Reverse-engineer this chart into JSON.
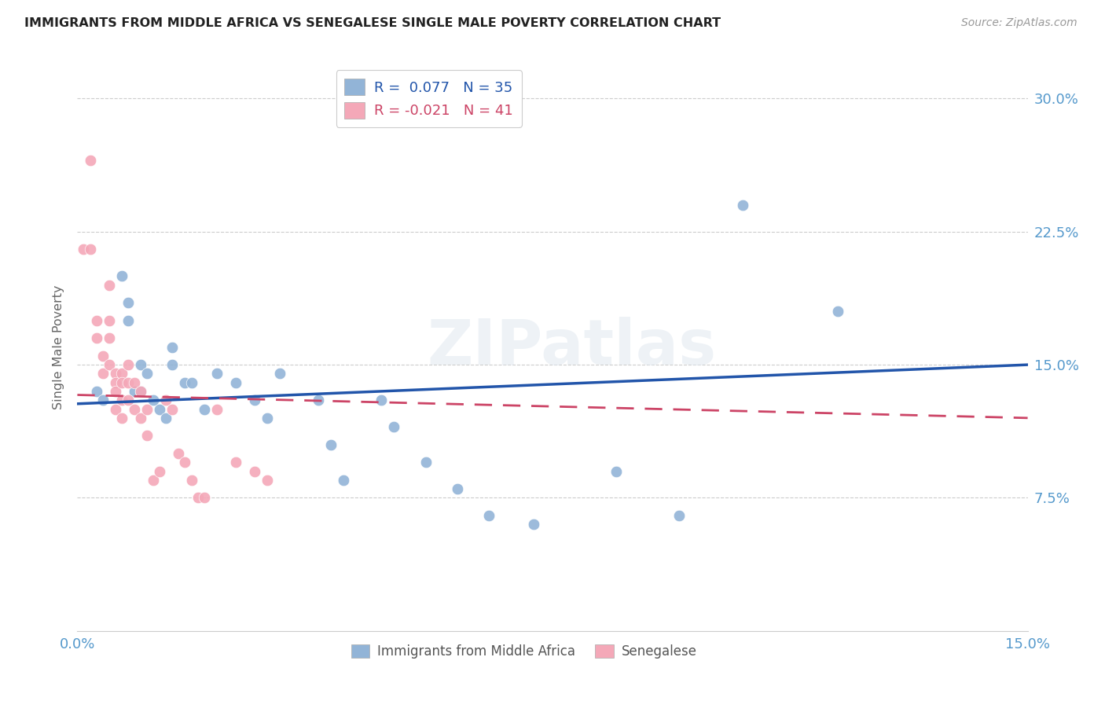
{
  "title": "IMMIGRANTS FROM MIDDLE AFRICA VS SENEGALESE SINGLE MALE POVERTY CORRELATION CHART",
  "source": "Source: ZipAtlas.com",
  "ylabel": "Single Male Poverty",
  "y_tick_labels": [
    "7.5%",
    "15.0%",
    "22.5%",
    "30.0%"
  ],
  "y_tick_values": [
    0.075,
    0.15,
    0.225,
    0.3
  ],
  "x_min": 0.0,
  "x_max": 0.15,
  "y_min": 0.0,
  "y_max": 0.32,
  "legend_r1": "R =  0.077   N = 35",
  "legend_r2": "R = -0.021   N = 41",
  "blue_color": "#92B4D7",
  "pink_color": "#F4A8B8",
  "line_blue_color": "#2255AA",
  "line_pink_color": "#CC4466",
  "axis_label_color": "#5599CC",
  "watermark": "ZIPatlas",
  "blue_points_x": [
    0.003,
    0.004,
    0.007,
    0.008,
    0.008,
    0.009,
    0.01,
    0.01,
    0.011,
    0.012,
    0.013,
    0.014,
    0.015,
    0.015,
    0.017,
    0.018,
    0.02,
    0.022,
    0.025,
    0.028,
    0.03,
    0.032,
    0.038,
    0.04,
    0.042,
    0.048,
    0.05,
    0.055,
    0.06,
    0.065,
    0.072,
    0.085,
    0.095,
    0.105,
    0.12
  ],
  "blue_points_y": [
    0.135,
    0.13,
    0.2,
    0.185,
    0.175,
    0.135,
    0.15,
    0.135,
    0.145,
    0.13,
    0.125,
    0.12,
    0.16,
    0.15,
    0.14,
    0.14,
    0.125,
    0.145,
    0.14,
    0.13,
    0.12,
    0.145,
    0.13,
    0.105,
    0.085,
    0.13,
    0.115,
    0.095,
    0.08,
    0.065,
    0.06,
    0.09,
    0.065,
    0.24,
    0.18
  ],
  "pink_points_x": [
    0.001,
    0.002,
    0.002,
    0.003,
    0.003,
    0.004,
    0.004,
    0.005,
    0.005,
    0.005,
    0.005,
    0.006,
    0.006,
    0.006,
    0.006,
    0.007,
    0.007,
    0.007,
    0.007,
    0.008,
    0.008,
    0.008,
    0.009,
    0.009,
    0.01,
    0.01,
    0.011,
    0.011,
    0.012,
    0.013,
    0.014,
    0.015,
    0.016,
    0.017,
    0.018,
    0.019,
    0.02,
    0.022,
    0.025,
    0.028,
    0.03
  ],
  "pink_points_y": [
    0.215,
    0.265,
    0.215,
    0.175,
    0.165,
    0.155,
    0.145,
    0.195,
    0.175,
    0.165,
    0.15,
    0.145,
    0.14,
    0.135,
    0.125,
    0.145,
    0.14,
    0.13,
    0.12,
    0.15,
    0.14,
    0.13,
    0.14,
    0.125,
    0.135,
    0.12,
    0.125,
    0.11,
    0.085,
    0.09,
    0.13,
    0.125,
    0.1,
    0.095,
    0.085,
    0.075,
    0.075,
    0.125,
    0.095,
    0.09,
    0.085
  ],
  "blue_line_x": [
    0.0,
    0.15
  ],
  "blue_line_y": [
    0.128,
    0.15
  ],
  "pink_line_x": [
    0.0,
    0.15
  ],
  "pink_line_y": [
    0.133,
    0.12
  ]
}
